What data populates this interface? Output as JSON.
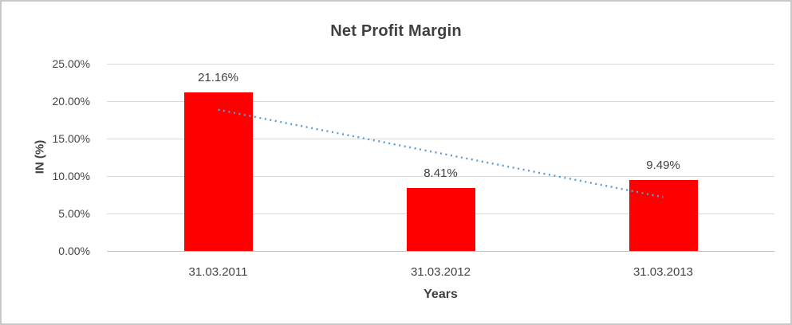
{
  "chart_data": {
    "type": "bar",
    "title": "Net Profit Margin",
    "xlabel": "Years",
    "ylabel": "IN (%)",
    "categories": [
      "31.03.2011",
      "31.03.2012",
      "31.03.2013"
    ],
    "values": [
      21.16,
      8.41,
      9.49
    ],
    "data_labels": [
      "21.16%",
      "8.41%",
      "9.49%"
    ],
    "ylim": [
      0,
      25
    ],
    "y_ticks": [
      {
        "value": 0,
        "label": "0.00%"
      },
      {
        "value": 5,
        "label": "5.00%"
      },
      {
        "value": 10,
        "label": "10.00%"
      },
      {
        "value": 15,
        "label": "15.00%"
      },
      {
        "value": 20,
        "label": "20.00%"
      },
      {
        "value": 25,
        "label": "25.00%"
      }
    ],
    "grid": true,
    "legend": "none",
    "bar_color": "#FF0000",
    "trendline": {
      "type": "linear",
      "style": "dotted",
      "color": "#5B9BD5",
      "start_value": 18.86,
      "end_value": 7.19
    },
    "colors": {
      "title_text": "#404040",
      "axis_text": "#444444",
      "gridline": "#D9D9D9",
      "axis_line": "#BFBFBF",
      "frame_border": "#C8C8C8",
      "background": "#FFFFFF"
    }
  }
}
